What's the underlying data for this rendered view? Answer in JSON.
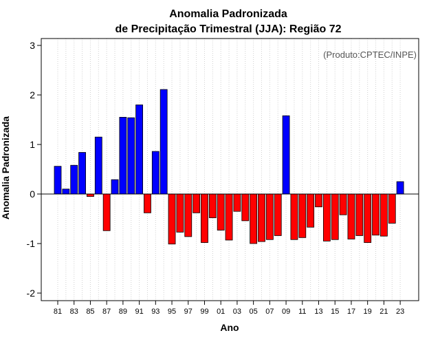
{
  "chart_data": {
    "type": "bar",
    "title": "Anomalia Padronizada",
    "subtitle": "de Precipitação Trimestral (JJA): Região 72",
    "xlabel": "Ano",
    "ylabel": "Anomalia Padronizada",
    "annotation": "(Produto:CPTEC/INPE)",
    "ylim": [
      -2,
      3
    ],
    "yticks": [
      "-2",
      "-1",
      "0",
      "1",
      "2",
      "3"
    ],
    "categories": [
      "81",
      "82",
      "83",
      "84",
      "85",
      "86",
      "87",
      "88",
      "89",
      "90",
      "91",
      "92",
      "93",
      "94",
      "95",
      "96",
      "97",
      "98",
      "99",
      "00",
      "01",
      "02",
      "03",
      "04",
      "05",
      "06",
      "07",
      "08",
      "09",
      "10",
      "11",
      "12",
      "13",
      "14",
      "15",
      "16",
      "17",
      "18",
      "19",
      "20",
      "21",
      "22",
      "23"
    ],
    "xtick_labels": [
      "81",
      "83",
      "85",
      "87",
      "89",
      "91",
      "93",
      "95",
      "97",
      "99",
      "01",
      "03",
      "05",
      "07",
      "09",
      "11",
      "13",
      "15",
      "17",
      "19",
      "21",
      "23"
    ],
    "values": [
      0.56,
      0.1,
      0.58,
      0.84,
      -0.05,
      1.15,
      -0.74,
      0.29,
      1.55,
      1.54,
      1.8,
      -0.38,
      0.86,
      2.11,
      -1.01,
      -0.77,
      -0.86,
      -0.38,
      -0.98,
      -0.48,
      -0.73,
      -0.93,
      -0.35,
      -0.54,
      -1.0,
      -0.96,
      -0.92,
      -0.84,
      1.58,
      -0.92,
      -0.88,
      -0.67,
      -0.26,
      -0.95,
      -0.92,
      -0.42,
      -0.91,
      -0.84,
      -0.98,
      -0.83,
      -0.85,
      -0.59,
      0.25
    ],
    "positive_color": "#0000ff",
    "negative_color": "#ff0000",
    "grid": "vertical dotted"
  }
}
